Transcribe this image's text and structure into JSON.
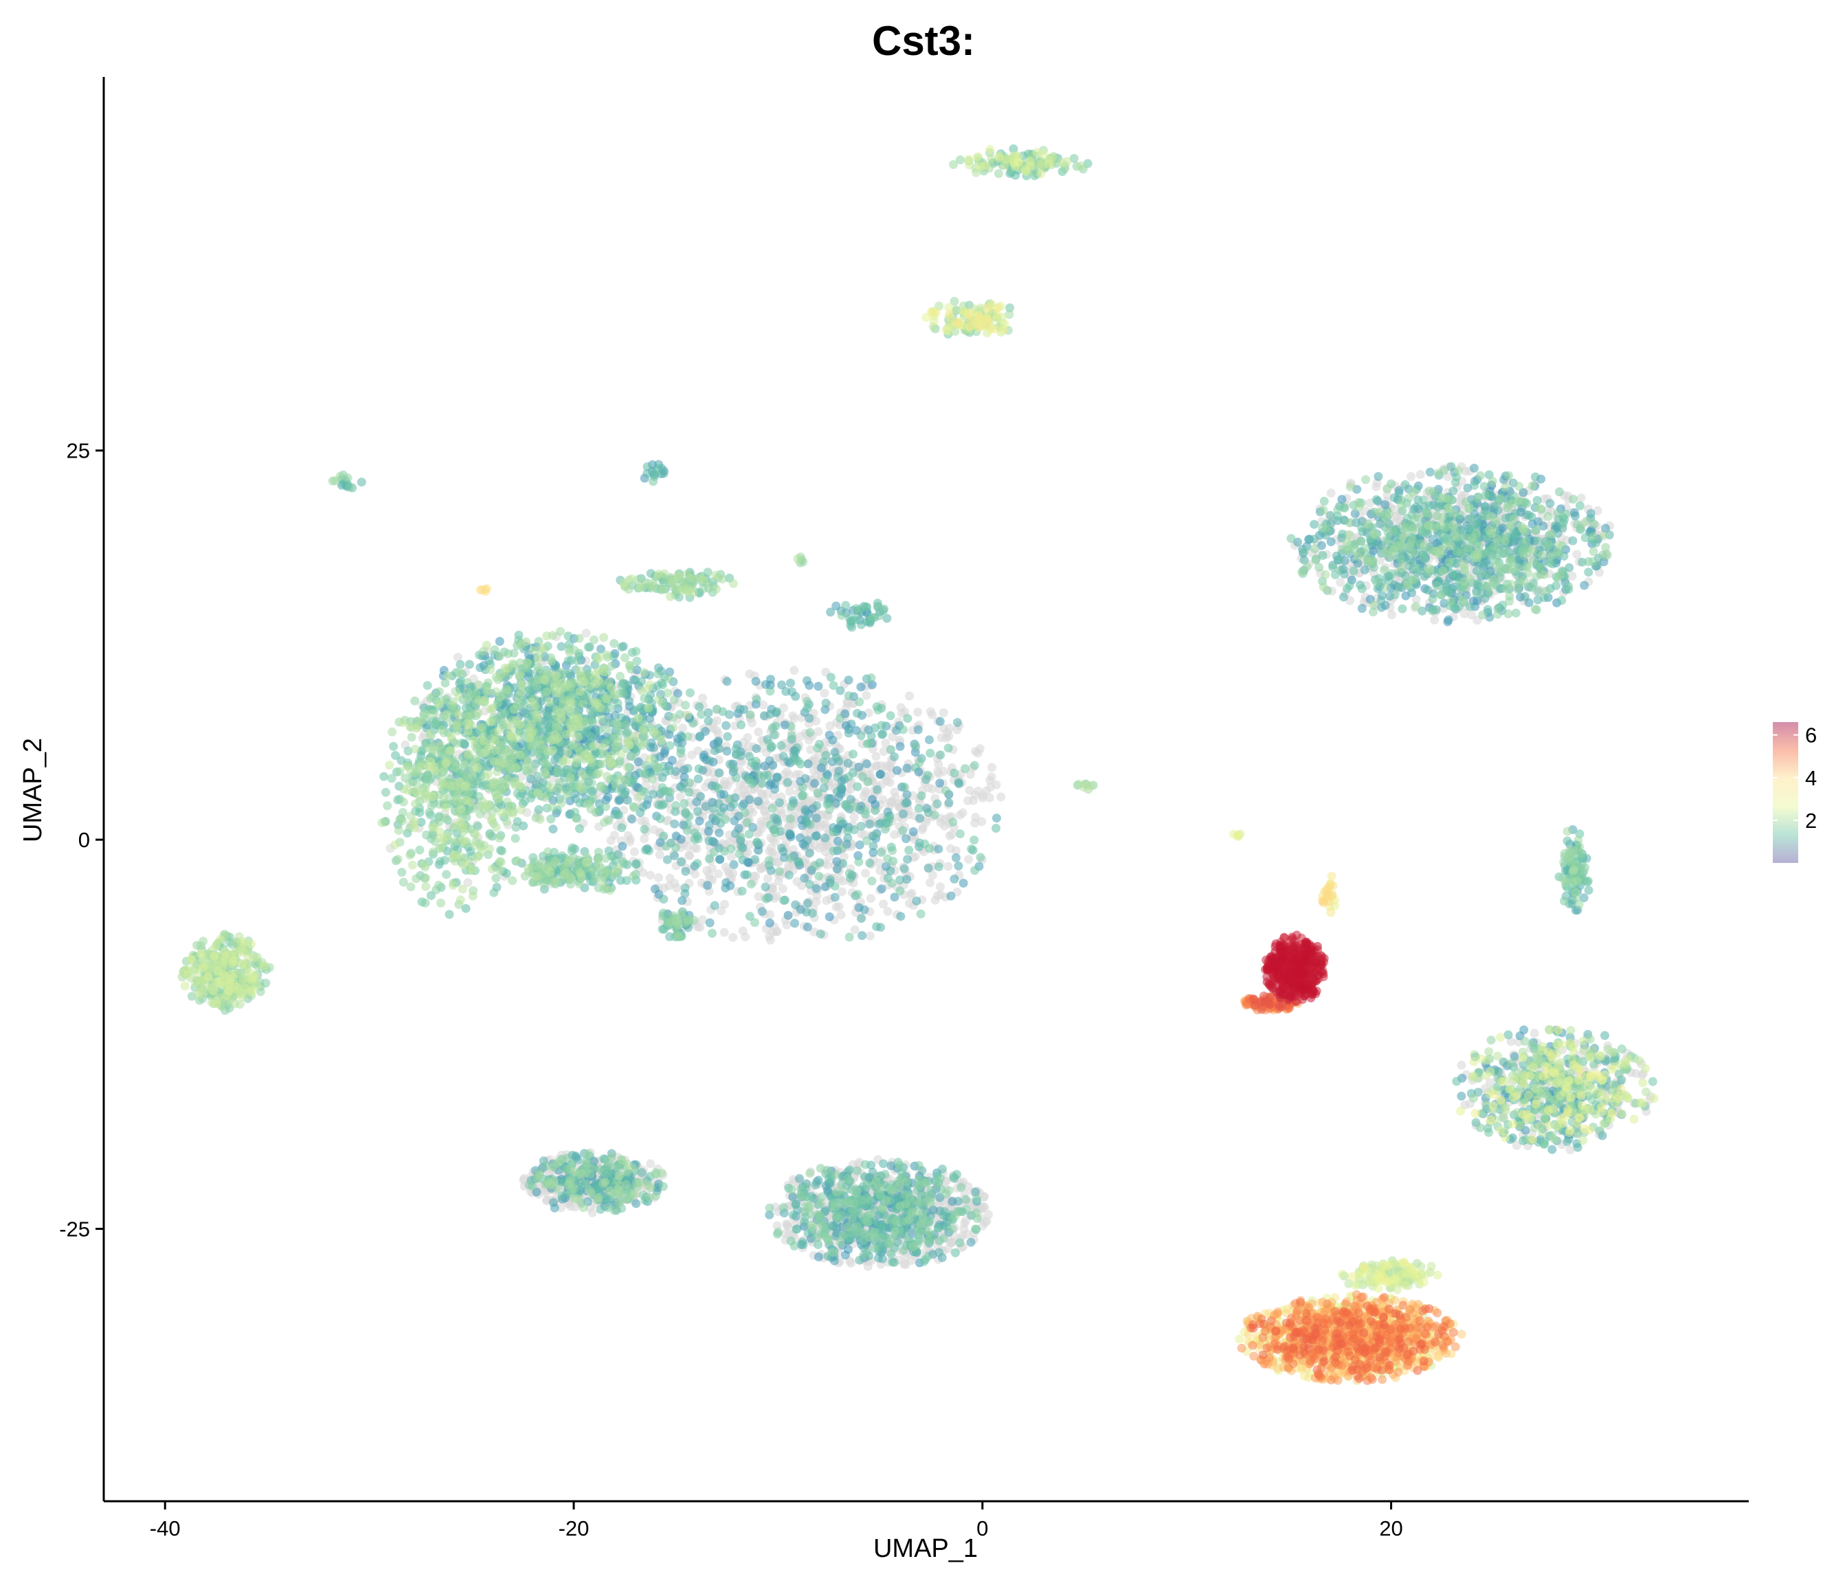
{
  "chart_data": {
    "type": "scatter",
    "title": "Cst3:",
    "xlabel": "UMAP_1",
    "ylabel": "UMAP_2",
    "xlim": [
      -43,
      37.5
    ],
    "ylim": [
      -42.5,
      49
    ],
    "x_ticks": [
      -40,
      -20,
      0,
      20
    ],
    "y_ticks": [
      -25,
      0,
      25
    ],
    "x_tick_labels": [
      "-40",
      "-20",
      "0",
      "20"
    ],
    "y_tick_labels": [
      "-25",
      "0",
      "25"
    ],
    "grid": false,
    "legend": {
      "placement": "right",
      "type": "colorbar",
      "ticks": [
        2,
        4,
        6
      ],
      "tick_labels": [
        "2",
        "4",
        "6"
      ],
      "range": [
        0,
        6.6
      ]
    },
    "colors": {
      "low": "#3288bd",
      "mid_low": "#99d594",
      "mid": "#fffcb0",
      "mid_high": "#fdae61",
      "high": "#d53e4f",
      "peak": "#c2112e",
      "zero_expression": "#d9d9d9"
    },
    "clusters": [
      {
        "cx": -21,
        "cy": 7,
        "rx": 7,
        "ry": 6.5,
        "n": 1400,
        "expr": [
          0.2,
          2.3
        ],
        "gray": 0.1
      },
      {
        "cx": -26,
        "cy": 3,
        "rx": 3.5,
        "ry": 8,
        "n": 500,
        "expr": [
          1.0,
          2.4
        ],
        "gray": 0.05
      },
      {
        "cx": -9,
        "cy": 2,
        "rx": 10,
        "ry": 9,
        "n": 1600,
        "expr": [
          0.2,
          1.5
        ],
        "gray": 0.6
      },
      {
        "cx": -20,
        "cy": -2,
        "rx": 3.5,
        "ry": 1.5,
        "n": 200,
        "expr": [
          0.8,
          2.2
        ],
        "gray": 0.1
      },
      {
        "cx": -15,
        "cy": 16.5,
        "rx": 3,
        "ry": 1,
        "n": 100,
        "expr": [
          1.0,
          2.3
        ],
        "gray": 0.0
      },
      {
        "cx": -6,
        "cy": 14.5,
        "rx": 1.5,
        "ry": 1,
        "n": 40,
        "expr": [
          0.3,
          1.6
        ],
        "gray": 0.0
      },
      {
        "cx": -15,
        "cy": -5.5,
        "rx": 1,
        "ry": 1,
        "n": 50,
        "expr": [
          0.6,
          2.0
        ],
        "gray": 0.2
      },
      {
        "cx": -37,
        "cy": -8.5,
        "rx": 2.2,
        "ry": 2.5,
        "n": 300,
        "expr": [
          1.4,
          2.6
        ],
        "gray": 0.0
      },
      {
        "cx": -31,
        "cy": 23,
        "rx": 0.8,
        "ry": 0.5,
        "n": 15,
        "expr": [
          0.6,
          2.0
        ],
        "gray": 0.0
      },
      {
        "cx": -16,
        "cy": 23.5,
        "rx": 0.6,
        "ry": 1,
        "n": 15,
        "expr": [
          0.3,
          1.5
        ],
        "gray": 0.0
      },
      {
        "cx": -24.5,
        "cy": 16,
        "rx": 0.3,
        "ry": 0.3,
        "n": 5,
        "expr": [
          3.0,
          3.5
        ],
        "gray": 0.0
      },
      {
        "cx": -9,
        "cy": 18,
        "rx": 0.4,
        "ry": 0.3,
        "n": 5,
        "expr": [
          1.5,
          2.2
        ],
        "gray": 0.0
      },
      {
        "cx": 5,
        "cy": 3.5,
        "rx": 0.6,
        "ry": 0.3,
        "n": 8,
        "expr": [
          1.5,
          2.2
        ],
        "gray": 0.0
      },
      {
        "cx": 12.5,
        "cy": 0.3,
        "rx": 0.3,
        "ry": 0.3,
        "n": 5,
        "expr": [
          2.3,
          3.0
        ],
        "gray": 0.0
      },
      {
        "cx": 2,
        "cy": 43.5,
        "rx": 3.5,
        "ry": 1,
        "n": 120,
        "expr": [
          1.0,
          2.8
        ],
        "gray": 0.0
      },
      {
        "cx": -0.5,
        "cy": 33.5,
        "rx": 2.5,
        "ry": 1.2,
        "n": 120,
        "expr": [
          1.3,
          3.2
        ],
        "gray": 0.0
      },
      {
        "cx": 23,
        "cy": 19,
        "rx": 8,
        "ry": 5,
        "n": 1400,
        "expr": [
          0.2,
          2.0
        ],
        "gray": 0.35
      },
      {
        "cx": 29,
        "cy": -2,
        "rx": 0.8,
        "ry": 3,
        "n": 100,
        "expr": [
          0.5,
          2.0
        ],
        "gray": 0.0
      },
      {
        "cx": 15.3,
        "cy": -8.3,
        "rx": 1.5,
        "ry": 2.2,
        "n": 500,
        "expr": [
          6.0,
          6.6
        ],
        "gray": 0.0
      },
      {
        "cx": 14,
        "cy": -10.5,
        "rx": 1.5,
        "ry": 0.5,
        "n": 120,
        "expr": [
          4.0,
          5.5
        ],
        "gray": 0.0
      },
      {
        "cx": 17,
        "cy": -3.5,
        "rx": 0.4,
        "ry": 1.3,
        "n": 25,
        "expr": [
          2.8,
          3.6
        ],
        "gray": 0.0
      },
      {
        "cx": 28,
        "cy": -16,
        "rx": 5,
        "ry": 4,
        "n": 700,
        "expr": [
          0.3,
          3.0
        ],
        "gray": 0.25
      },
      {
        "cx": 20,
        "cy": -28,
        "rx": 2.5,
        "ry": 1,
        "n": 120,
        "expr": [
          2.0,
          3.0
        ],
        "gray": 0.0
      },
      {
        "cx": 18,
        "cy": -32,
        "rx": 5.5,
        "ry": 2.8,
        "n": 1300,
        "expr": [
          2.5,
          5.2
        ],
        "gray": 0.0
      },
      {
        "cx": -19,
        "cy": -22,
        "rx": 3.5,
        "ry": 2,
        "n": 500,
        "expr": [
          0.3,
          2.0
        ],
        "gray": 0.5
      },
      {
        "cx": -5,
        "cy": -24,
        "rx": 5.5,
        "ry": 3.5,
        "n": 1100,
        "expr": [
          0.3,
          1.8
        ],
        "gray": 0.5
      }
    ]
  }
}
